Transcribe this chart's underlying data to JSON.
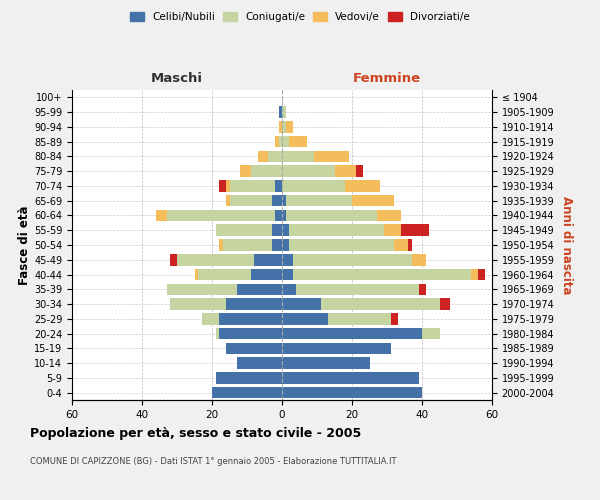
{
  "age_groups": [
    "100+",
    "95-99",
    "90-94",
    "85-89",
    "80-84",
    "75-79",
    "70-74",
    "65-69",
    "60-64",
    "55-59",
    "50-54",
    "45-49",
    "40-44",
    "35-39",
    "30-34",
    "25-29",
    "20-24",
    "15-19",
    "10-14",
    "5-9",
    "0-4"
  ],
  "birth_years": [
    "≤ 1904",
    "1905-1909",
    "1910-1914",
    "1915-1919",
    "1920-1924",
    "1925-1929",
    "1930-1934",
    "1935-1939",
    "1940-1944",
    "1945-1949",
    "1950-1954",
    "1955-1959",
    "1960-1964",
    "1965-1969",
    "1970-1974",
    "1975-1979",
    "1980-1984",
    "1985-1989",
    "1990-1994",
    "1995-1999",
    "2000-2004"
  ],
  "colors": {
    "celibi": "#4472a8",
    "coniugati": "#c5d4a0",
    "vedovi": "#f5bc5c",
    "divorziati": "#cc2222"
  },
  "maschi": {
    "celibi": [
      0,
      1,
      0,
      0,
      0,
      0,
      2,
      3,
      2,
      3,
      3,
      8,
      9,
      13,
      16,
      18,
      18,
      16,
      13,
      19,
      20
    ],
    "coniugati": [
      0,
      0,
      0,
      1,
      4,
      9,
      13,
      12,
      31,
      16,
      14,
      22,
      15,
      20,
      16,
      5,
      1,
      0,
      0,
      0,
      0
    ],
    "vedovi": [
      0,
      0,
      1,
      1,
      3,
      3,
      1,
      1,
      3,
      0,
      1,
      0,
      1,
      0,
      0,
      0,
      0,
      0,
      0,
      0,
      0
    ],
    "divorziati": [
      0,
      0,
      0,
      0,
      0,
      0,
      2,
      0,
      0,
      0,
      0,
      2,
      0,
      0,
      0,
      0,
      0,
      0,
      0,
      0,
      0
    ]
  },
  "femmine": {
    "celibi": [
      0,
      0,
      0,
      0,
      0,
      0,
      0,
      1,
      1,
      2,
      2,
      3,
      3,
      4,
      11,
      13,
      40,
      31,
      25,
      39,
      40
    ],
    "coniugati": [
      0,
      1,
      1,
      2,
      9,
      15,
      18,
      19,
      26,
      27,
      30,
      34,
      51,
      35,
      34,
      18,
      5,
      0,
      0,
      0,
      0
    ],
    "vedovi": [
      0,
      0,
      2,
      5,
      10,
      6,
      10,
      12,
      7,
      5,
      4,
      4,
      2,
      0,
      0,
      0,
      0,
      0,
      0,
      0,
      0
    ],
    "divorziati": [
      0,
      0,
      0,
      0,
      0,
      2,
      0,
      0,
      0,
      8,
      1,
      0,
      2,
      2,
      3,
      2,
      0,
      0,
      0,
      0,
      0
    ]
  },
  "xlim": 60,
  "title": "Popolazione per età, sesso e stato civile - 2005",
  "subtitle": "COMUNE DI CAPIZZONE (BG) - Dati ISTAT 1° gennaio 2005 - Elaborazione TUTTITALIA.IT",
  "xlabel_left": "Maschi",
  "xlabel_right": "Femmine",
  "ylabel_left": "Fasce di età",
  "ylabel_right": "Anni di nascita",
  "legend_labels": [
    "Celibi/Nubili",
    "Coniugati/e",
    "Vedovi/e",
    "Divorziati/e"
  ],
  "bg_color": "#f0f0f0",
  "plot_bg_color": "#ffffff"
}
